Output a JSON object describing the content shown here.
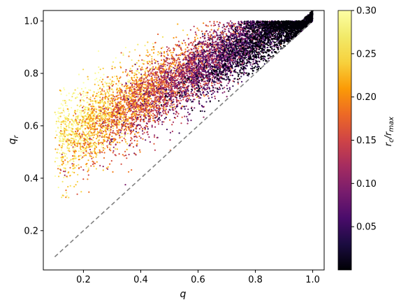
{
  "chart_data": {
    "type": "scatter",
    "title": "",
    "xlabel": "q",
    "ylabel_main": "q",
    "ylabel_sub": "r",
    "xlim": [
      0.06,
      1.04
    ],
    "ylim": [
      0.05,
      1.04
    ],
    "xticks": [
      0.2,
      0.4,
      0.6,
      0.8,
      1.0
    ],
    "xtick_labels": [
      "0.2",
      "0.4",
      "0.6",
      "0.8",
      "1.0"
    ],
    "yticks": [
      0.2,
      0.4,
      0.6,
      0.8,
      1.0
    ],
    "ytick_labels": [
      "0.2",
      "0.4",
      "0.6",
      "0.8",
      "1.0"
    ],
    "reference_line": {
      "style": "dashed",
      "color": "#808080",
      "from": [
        0.1,
        0.1
      ],
      "to": [
        1.0,
        1.0
      ]
    },
    "colorbar": {
      "label_main": "r",
      "label_sub_c": "c",
      "label_sep": "/",
      "label_main2": "r",
      "label_sub_max": "max",
      "colormap": "inferno",
      "range": [
        0.0,
        0.3
      ],
      "ticks": [
        0.05,
        0.1,
        0.15,
        0.2,
        0.25,
        0.3
      ],
      "tick_labels": [
        "0.05",
        "0.10",
        "0.15",
        "0.20",
        "0.25",
        "0.30"
      ]
    },
    "points_note_count": 9000,
    "points_distribution": {
      "q_range": [
        0.1,
        1.0
      ],
      "qr_upper_bound": 1.0,
      "qr_lower_bound_is_q": true,
      "color_trend": "high r_c/r_max (yellow) at low q, low r_c/r_max (dark purple) at high q"
    }
  }
}
